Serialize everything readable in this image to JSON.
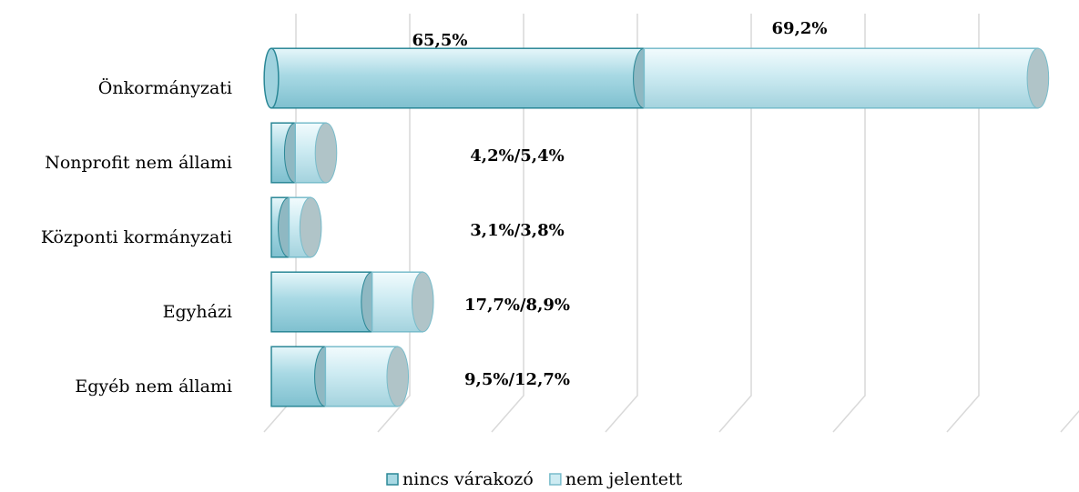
{
  "chart_data": {
    "type": "bar",
    "orientation": "horizontal",
    "stacked": true,
    "categories": [
      "Önkormányzati",
      "Nonprofit nem állami",
      "Központi kormányzati",
      "Egyházi",
      "Egyéb nem állami"
    ],
    "series": [
      {
        "name": "nincs várakozó",
        "color": "#a8d9e4",
        "values": [
          65.5,
          4.2,
          3.1,
          17.7,
          9.5
        ],
        "value_labels": [
          "65,5%",
          null,
          null,
          null,
          null
        ]
      },
      {
        "name": "nem jelentett",
        "color": "#cdebf2",
        "values": [
          69.2,
          5.4,
          3.8,
          8.9,
          12.7
        ],
        "value_labels": [
          "69,2%",
          null,
          null,
          null,
          null
        ]
      }
    ],
    "annotations": [
      null,
      "4,2%/5,4%",
      "3,1%/3,8%",
      "17,7%/8,9%",
      "9,5%/12,7%"
    ],
    "xlim": [
      0,
      140
    ],
    "xticks": [
      0,
      20,
      40,
      60,
      80,
      100,
      120,
      140
    ],
    "grid": true,
    "legend": "bottom"
  }
}
